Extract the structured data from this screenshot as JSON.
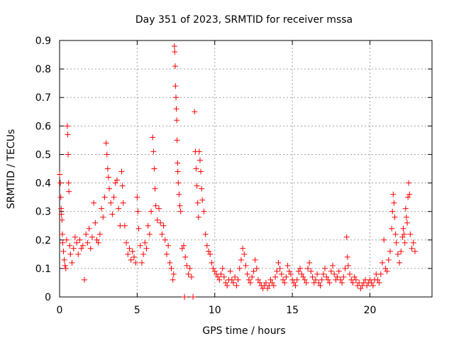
{
  "chart_data": {
    "type": "scatter",
    "title": "Day 351 of 2023, SRMTID for receiver mssa",
    "xlabel": "GPS time / hours",
    "ylabel": "SRMTID / TECUs",
    "xlim": [
      0,
      24
    ],
    "ylim": [
      0,
      0.9
    ],
    "xticks": [
      0,
      5,
      10,
      15,
      20
    ],
    "xtick_labels": [
      "0",
      "5",
      "10",
      "15",
      "20"
    ],
    "yticks": [
      0,
      0.1,
      0.2,
      0.3,
      0.4,
      0.5,
      0.6,
      0.7,
      0.8,
      0.9
    ],
    "ytick_labels": [
      "0",
      "0.1",
      "0.2",
      "0.3",
      "0.4",
      "0.5",
      "0.6",
      "0.7",
      "0.8",
      "0.9"
    ],
    "grid": true,
    "marker": "+",
    "color": "#ff0000",
    "series": [
      {
        "name": "SRMTID",
        "points": [
          [
            0.0,
            0.43
          ],
          [
            0.05,
            0.4
          ],
          [
            0.08,
            0.35
          ],
          [
            0.1,
            0.31
          ],
          [
            0.12,
            0.29
          ],
          [
            0.15,
            0.27
          ],
          [
            0.18,
            0.22
          ],
          [
            0.2,
            0.19
          ],
          [
            0.25,
            0.16
          ],
          [
            0.3,
            0.13
          ],
          [
            0.35,
            0.11
          ],
          [
            0.4,
            0.1
          ],
          [
            0.45,
            0.2
          ],
          [
            0.5,
            0.6
          ],
          [
            0.52,
            0.57
          ],
          [
            0.55,
            0.5
          ],
          [
            0.58,
            0.4
          ],
          [
            0.6,
            0.37
          ],
          [
            0.65,
            0.18
          ],
          [
            0.7,
            0.15
          ],
          [
            0.8,
            0.12
          ],
          [
            0.9,
            0.17
          ],
          [
            1.0,
            0.21
          ],
          [
            1.1,
            0.19
          ],
          [
            1.2,
            0.15
          ],
          [
            1.3,
            0.2
          ],
          [
            1.4,
            0.17
          ],
          [
            1.5,
            0.18
          ],
          [
            1.6,
            0.06
          ],
          [
            1.7,
            0.22
          ],
          [
            1.8,
            0.19
          ],
          [
            1.9,
            0.24
          ],
          [
            2.0,
            0.17
          ],
          [
            2.1,
            0.21
          ],
          [
            2.2,
            0.33
          ],
          [
            2.3,
            0.26
          ],
          [
            2.4,
            0.2
          ],
          [
            2.5,
            0.19
          ],
          [
            2.6,
            0.22
          ],
          [
            2.7,
            0.31
          ],
          [
            2.8,
            0.28
          ],
          [
            2.9,
            0.35
          ],
          [
            3.0,
            0.54
          ],
          [
            3.05,
            0.5
          ],
          [
            3.1,
            0.45
          ],
          [
            3.15,
            0.42
          ],
          [
            3.2,
            0.38
          ],
          [
            3.3,
            0.33
          ],
          [
            3.4,
            0.29
          ],
          [
            3.5,
            0.35
          ],
          [
            3.6,
            0.4
          ],
          [
            3.7,
            0.41
          ],
          [
            3.8,
            0.31
          ],
          [
            3.9,
            0.25
          ],
          [
            4.0,
            0.44
          ],
          [
            4.05,
            0.39
          ],
          [
            4.1,
            0.33
          ],
          [
            4.2,
            0.25
          ],
          [
            4.3,
            0.19
          ],
          [
            4.4,
            0.15
          ],
          [
            4.5,
            0.17
          ],
          [
            4.6,
            0.13
          ],
          [
            4.7,
            0.16
          ],
          [
            4.8,
            0.14
          ],
          [
            4.9,
            0.12
          ],
          [
            5.0,
            0.35
          ],
          [
            5.05,
            0.3
          ],
          [
            5.1,
            0.24
          ],
          [
            5.2,
            0.18
          ],
          [
            5.3,
            0.12
          ],
          [
            5.4,
            0.15
          ],
          [
            5.5,
            0.19
          ],
          [
            5.6,
            0.17
          ],
          [
            5.7,
            0.25
          ],
          [
            5.8,
            0.22
          ],
          [
            5.9,
            0.3
          ],
          [
            6.0,
            0.56
          ],
          [
            6.05,
            0.51
          ],
          [
            6.1,
            0.45
          ],
          [
            6.15,
            0.38
          ],
          [
            6.2,
            0.32
          ],
          [
            6.3,
            0.27
          ],
          [
            6.4,
            0.31
          ],
          [
            6.5,
            0.26
          ],
          [
            6.6,
            0.22
          ],
          [
            6.7,
            0.25
          ],
          [
            6.8,
            0.2
          ],
          [
            6.9,
            0.15
          ],
          [
            7.0,
            0.18
          ],
          [
            7.1,
            0.12
          ],
          [
            7.2,
            0.1
          ],
          [
            7.3,
            0.06
          ],
          [
            7.35,
            0.08
          ],
          [
            7.4,
            0.88
          ],
          [
            7.42,
            0.86
          ],
          [
            7.45,
            0.81
          ],
          [
            7.47,
            0.74
          ],
          [
            7.5,
            0.7
          ],
          [
            7.52,
            0.66
          ],
          [
            7.55,
            0.62
          ],
          [
            7.57,
            0.55
          ],
          [
            7.6,
            0.47
          ],
          [
            7.62,
            0.44
          ],
          [
            7.65,
            0.4
          ],
          [
            7.7,
            0.36
          ],
          [
            7.75,
            0.32
          ],
          [
            7.8,
            0.3
          ],
          [
            7.9,
            0.17
          ],
          [
            8.0,
            0.18
          ],
          [
            8.05,
            0.0
          ],
          [
            8.1,
            0.14
          ],
          [
            8.2,
            0.11
          ],
          [
            8.3,
            0.08
          ],
          [
            8.4,
            0.1
          ],
          [
            8.5,
            0.07
          ],
          [
            8.6,
            0.0
          ],
          [
            8.7,
            0.65
          ],
          [
            8.75,
            0.51
          ],
          [
            8.8,
            0.45
          ],
          [
            8.85,
            0.39
          ],
          [
            8.9,
            0.33
          ],
          [
            8.95,
            0.28
          ],
          [
            9.0,
            0.51
          ],
          [
            9.05,
            0.48
          ],
          [
            9.1,
            0.44
          ],
          [
            9.15,
            0.38
          ],
          [
            9.2,
            0.34
          ],
          [
            9.3,
            0.3
          ],
          [
            9.4,
            0.22
          ],
          [
            9.5,
            0.18
          ],
          [
            9.6,
            0.16
          ],
          [
            9.7,
            0.15
          ],
          [
            9.8,
            0.12
          ],
          [
            9.9,
            0.1
          ],
          [
            10.0,
            0.09
          ],
          [
            10.1,
            0.08
          ],
          [
            10.2,
            0.07
          ],
          [
            10.3,
            0.06
          ],
          [
            10.4,
            0.08
          ],
          [
            10.5,
            0.1
          ],
          [
            10.6,
            0.07
          ],
          [
            10.7,
            0.05
          ],
          [
            10.8,
            0.04
          ],
          [
            10.9,
            0.06
          ],
          [
            11.0,
            0.09
          ],
          [
            11.1,
            0.06
          ],
          [
            11.2,
            0.05
          ],
          [
            11.3,
            0.07
          ],
          [
            11.4,
            0.04
          ],
          [
            11.5,
            0.06
          ],
          [
            11.6,
            0.1
          ],
          [
            11.7,
            0.13
          ],
          [
            11.8,
            0.17
          ],
          [
            11.9,
            0.15
          ],
          [
            12.0,
            0.11
          ],
          [
            12.1,
            0.08
          ],
          [
            12.2,
            0.06
          ],
          [
            12.3,
            0.05
          ],
          [
            12.4,
            0.07
          ],
          [
            12.5,
            0.09
          ],
          [
            12.6,
            0.13
          ],
          [
            12.7,
            0.1
          ],
          [
            12.8,
            0.06
          ],
          [
            12.9,
            0.05
          ],
          [
            13.0,
            0.04
          ],
          [
            13.1,
            0.03
          ],
          [
            13.2,
            0.04
          ],
          [
            13.3,
            0.05
          ],
          [
            13.4,
            0.03
          ],
          [
            13.5,
            0.04
          ],
          [
            13.6,
            0.06
          ],
          [
            13.7,
            0.05
          ],
          [
            13.8,
            0.04
          ],
          [
            13.9,
            0.07
          ],
          [
            14.0,
            0.09
          ],
          [
            14.1,
            0.12
          ],
          [
            14.2,
            0.1
          ],
          [
            14.3,
            0.08
          ],
          [
            14.4,
            0.06
          ],
          [
            14.5,
            0.05
          ],
          [
            14.6,
            0.07
          ],
          [
            14.7,
            0.11
          ],
          [
            14.8,
            0.09
          ],
          [
            14.9,
            0.08
          ],
          [
            15.0,
            0.06
          ],
          [
            15.1,
            0.05
          ],
          [
            15.2,
            0.04
          ],
          [
            15.3,
            0.06
          ],
          [
            15.4,
            0.09
          ],
          [
            15.5,
            0.1
          ],
          [
            15.6,
            0.08
          ],
          [
            15.7,
            0.07
          ],
          [
            15.8,
            0.06
          ],
          [
            15.9,
            0.05
          ],
          [
            16.0,
            0.1
          ],
          [
            16.1,
            0.12
          ],
          [
            16.2,
            0.09
          ],
          [
            16.3,
            0.07
          ],
          [
            16.4,
            0.05
          ],
          [
            16.5,
            0.06
          ],
          [
            16.6,
            0.08
          ],
          [
            16.7,
            0.05
          ],
          [
            16.8,
            0.04
          ],
          [
            16.9,
            0.06
          ],
          [
            17.0,
            0.08
          ],
          [
            17.1,
            0.1
          ],
          [
            17.2,
            0.07
          ],
          [
            17.3,
            0.06
          ],
          [
            17.4,
            0.05
          ],
          [
            17.5,
            0.09
          ],
          [
            17.6,
            0.11
          ],
          [
            17.7,
            0.08
          ],
          [
            17.8,
            0.06
          ],
          [
            17.9,
            0.07
          ],
          [
            18.0,
            0.09
          ],
          [
            18.1,
            0.06
          ],
          [
            18.2,
            0.05
          ],
          [
            18.3,
            0.07
          ],
          [
            18.4,
            0.1
          ],
          [
            18.5,
            0.21
          ],
          [
            18.55,
            0.14
          ],
          [
            18.6,
            0.11
          ],
          [
            18.7,
            0.08
          ],
          [
            18.8,
            0.06
          ],
          [
            18.9,
            0.05
          ],
          [
            19.0,
            0.07
          ],
          [
            19.1,
            0.06
          ],
          [
            19.2,
            0.04
          ],
          [
            19.3,
            0.05
          ],
          [
            19.4,
            0.03
          ],
          [
            19.5,
            0.04
          ],
          [
            19.6,
            0.05
          ],
          [
            19.7,
            0.06
          ],
          [
            19.8,
            0.04
          ],
          [
            19.9,
            0.05
          ],
          [
            20.0,
            0.06
          ],
          [
            20.1,
            0.05
          ],
          [
            20.2,
            0.04
          ],
          [
            20.3,
            0.06
          ],
          [
            20.4,
            0.08
          ],
          [
            20.5,
            0.06
          ],
          [
            20.6,
            0.05
          ],
          [
            20.7,
            0.08
          ],
          [
            20.8,
            0.12
          ],
          [
            20.9,
            0.2
          ],
          [
            21.0,
            0.1
          ],
          [
            21.1,
            0.09
          ],
          [
            21.2,
            0.13
          ],
          [
            21.3,
            0.16
          ],
          [
            21.4,
            0.24
          ],
          [
            21.45,
            0.3
          ],
          [
            21.5,
            0.36
          ],
          [
            21.55,
            0.33
          ],
          [
            21.6,
            0.28
          ],
          [
            21.65,
            0.22
          ],
          [
            21.7,
            0.19
          ],
          [
            21.8,
            0.15
          ],
          [
            21.9,
            0.12
          ],
          [
            22.0,
            0.16
          ],
          [
            22.1,
            0.21
          ],
          [
            22.15,
            0.24
          ],
          [
            22.2,
            0.22
          ],
          [
            22.25,
            0.19
          ],
          [
            22.3,
            0.31
          ],
          [
            22.35,
            0.28
          ],
          [
            22.4,
            0.26
          ],
          [
            22.45,
            0.35
          ],
          [
            22.5,
            0.4
          ],
          [
            22.55,
            0.36
          ],
          [
            22.6,
            0.22
          ],
          [
            22.7,
            0.17
          ],
          [
            22.8,
            0.19
          ],
          [
            22.9,
            0.16
          ]
        ]
      }
    ]
  }
}
